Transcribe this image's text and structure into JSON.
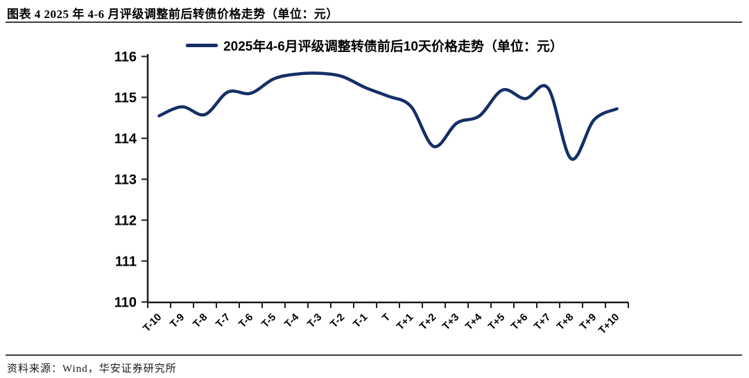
{
  "figure": {
    "title": "图表 4  2025 年 4-6 月评级调整前后转债价格走势（单位：元）",
    "source": "资料来源：Wind，华安证券研究所"
  },
  "colors": {
    "line": "#142f66",
    "axis": "#1a1a1a",
    "text": "#000000",
    "divider": "#3d3d3d"
  },
  "chart_data": {
    "type": "line",
    "title": "2025年4-6月评级调整转债前后10天价格走势（单位：元）",
    "legend_position": "top-center",
    "grid": false,
    "smooth": true,
    "categories": [
      "T-10",
      "T-9",
      "T-8",
      "T-7",
      "T-6",
      "T-5",
      "T-4",
      "T-3",
      "T-2",
      "T-1",
      "T",
      "T+1",
      "T+2",
      "T+3",
      "T+4",
      "T+5",
      "T+6",
      "T+7",
      "T+8",
      "T+9",
      "T+10"
    ],
    "series": [
      {
        "name": "2025年4-6月评级调整转债前后10天价格走势（单位：元）",
        "values": [
          114.55,
          114.77,
          114.58,
          115.13,
          115.1,
          115.45,
          115.57,
          115.59,
          115.51,
          115.24,
          115.03,
          114.78,
          113.8,
          114.37,
          114.55,
          115.18,
          114.97,
          115.22,
          113.5,
          114.45,
          114.72
        ]
      }
    ],
    "xlabel": "",
    "ylabel": "",
    "ylim": [
      110,
      116
    ],
    "yticks": [
      110,
      111,
      112,
      113,
      114,
      115,
      116
    ]
  }
}
